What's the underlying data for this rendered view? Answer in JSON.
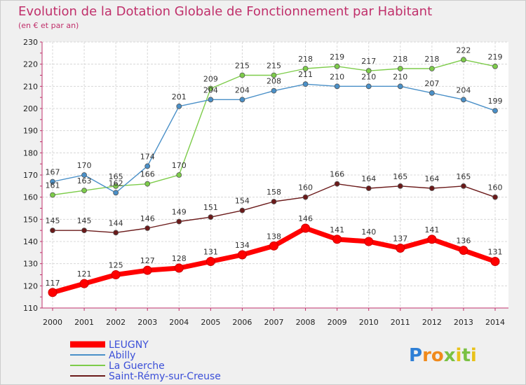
{
  "chart_data": {
    "type": "line",
    "title": "Evolution de la Dotation Globale de Fonctionnement par Habitant",
    "subtitle": "(en € et par an)",
    "xlabel": "",
    "ylabel": "",
    "ylim": [
      110,
      230
    ],
    "yticks": [
      110,
      120,
      130,
      140,
      150,
      160,
      170,
      180,
      190,
      200,
      210,
      220,
      230
    ],
    "categories": [
      "2000",
      "2001",
      "2002",
      "2003",
      "2004",
      "2005",
      "2006",
      "2007",
      "2008",
      "2009",
      "2010",
      "2011",
      "2012",
      "2013",
      "2014"
    ],
    "series": [
      {
        "name": "LEUGNY",
        "color": "#ff0000",
        "values": [
          117,
          121,
          125,
          127,
          128,
          131,
          134,
          138,
          146,
          141,
          140,
          137,
          141,
          136,
          131
        ]
      },
      {
        "name": "Abilly",
        "color": "#4a90c8",
        "values": [
          167,
          170,
          162,
          174,
          201,
          204,
          204,
          208,
          211,
          210,
          210,
          210,
          207,
          204,
          199
        ]
      },
      {
        "name": "La Guerche",
        "color": "#7dcc4a",
        "values": [
          161,
          163,
          165,
          166,
          170,
          209,
          215,
          215,
          218,
          219,
          217,
          218,
          218,
          222,
          219
        ]
      },
      {
        "name": "Saint-Rémy-sur-Creuse",
        "color": "#6b1a1a",
        "values": [
          145,
          145,
          144,
          146,
          149,
          151,
          154,
          158,
          160,
          166,
          164,
          165,
          164,
          165,
          160
        ]
      }
    ],
    "grid": true,
    "legend": "bottom-left"
  },
  "logo": {
    "letters": [
      "P",
      "r",
      "o",
      "x",
      "i",
      "t",
      "i"
    ],
    "colors": [
      "#2e7fd6",
      "#f08a1c",
      "#f08a1c",
      "#7ac143",
      "#e8c21a",
      "#7ac143",
      "#e8c21a"
    ]
  }
}
